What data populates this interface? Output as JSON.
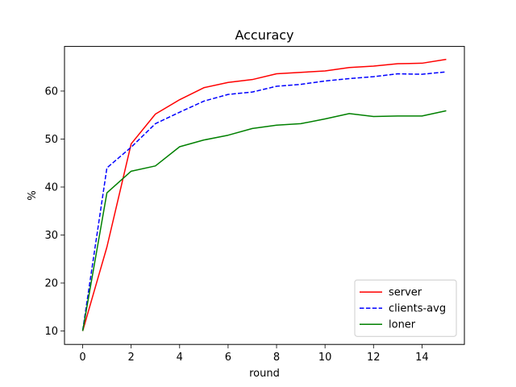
{
  "chart_data": {
    "type": "line",
    "title": "Accuracy",
    "xlabel": "round",
    "ylabel": "%",
    "x": [
      0,
      1,
      2,
      3,
      4,
      5,
      6,
      7,
      8,
      9,
      10,
      11,
      12,
      13,
      14,
      15
    ],
    "xlim": [
      -0.75,
      15.75
    ],
    "ylim": [
      7.2,
      69.3
    ],
    "xticks": [
      0,
      2,
      4,
      6,
      8,
      10,
      12,
      14
    ],
    "yticks": [
      10,
      20,
      30,
      40,
      50,
      60
    ],
    "grid": false,
    "legend_position": "lower-right",
    "series": [
      {
        "name": "server",
        "color": "#ff0000",
        "dash": "solid",
        "values": [
          10.0,
          27.5,
          49.0,
          55.2,
          58.2,
          60.7,
          61.8,
          62.4,
          63.6,
          63.9,
          64.2,
          64.9,
          65.2,
          65.7,
          65.8,
          66.6
        ]
      },
      {
        "name": "clients-avg",
        "color": "#0000ff",
        "dash": "dashed",
        "values": [
          10.1,
          44.0,
          48.3,
          53.2,
          55.6,
          57.9,
          59.3,
          59.8,
          61.0,
          61.4,
          62.1,
          62.6,
          63.0,
          63.6,
          63.5,
          64.0
        ]
      },
      {
        "name": "loner",
        "color": "#008000",
        "dash": "solid",
        "values": [
          10.0,
          38.8,
          43.3,
          44.4,
          48.4,
          49.8,
          50.8,
          52.2,
          52.9,
          53.2,
          54.2,
          55.3,
          54.7,
          54.8,
          54.8,
          55.9
        ]
      }
    ]
  }
}
